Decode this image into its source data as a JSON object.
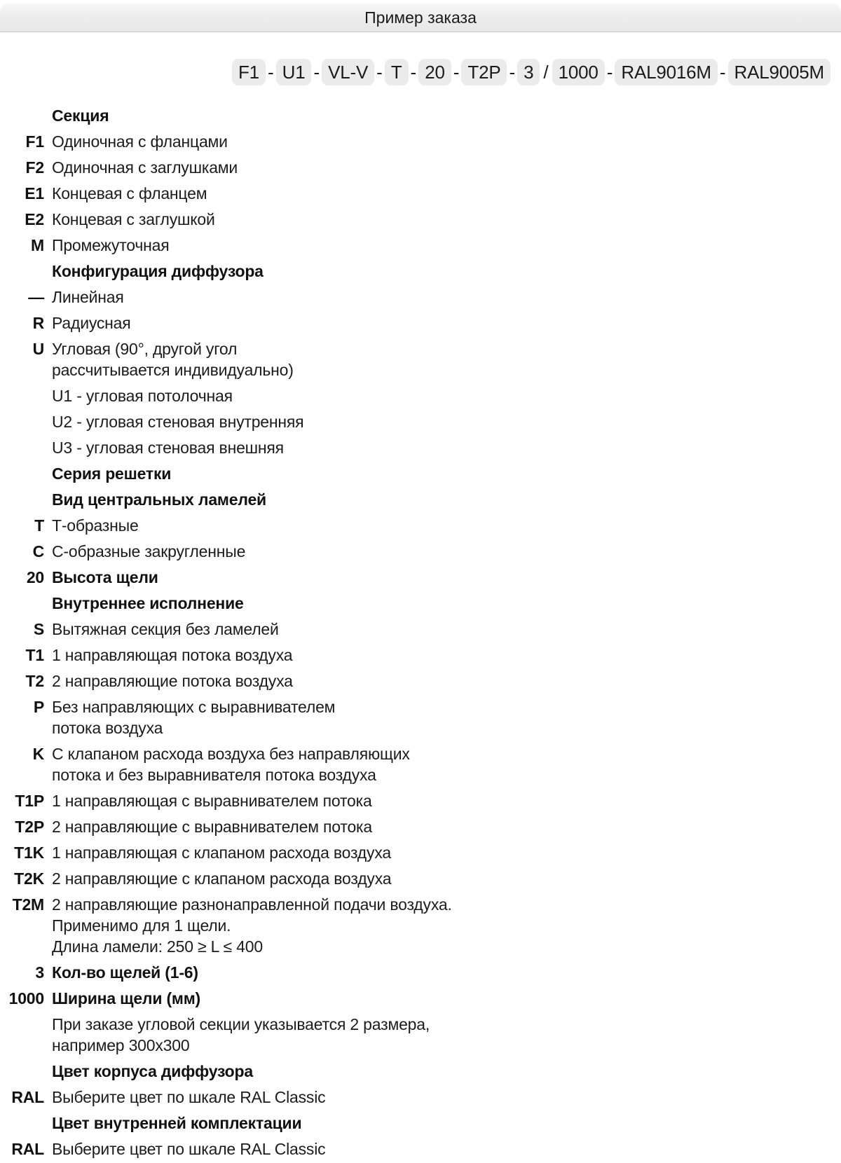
{
  "header": {
    "title": "Пример заказа"
  },
  "code": {
    "segments": [
      "F1",
      "U1",
      "VL-V",
      "T",
      "20",
      "T2P",
      "3",
      "1000",
      "RAL9016M",
      "RAL9005M"
    ],
    "separators": [
      "-",
      "-",
      "-",
      "-",
      "-",
      "-",
      "/",
      "-",
      "-"
    ]
  },
  "colors": {
    "chip_background": "#ebebeb",
    "connector_line": "#d6d6d6",
    "header_bar": "#ececec",
    "text": "#1c1c1c"
  },
  "rows": [
    {
      "k": "",
      "t": "Секция"
    },
    {
      "k": "F1",
      "t": "Одиночная с фланцами"
    },
    {
      "k": "F2",
      "t": "Одиночная с заглушками"
    },
    {
      "k": "E1",
      "t": "Концевая с фланцем"
    },
    {
      "k": "E2",
      "t": "Концевая с заглушкой"
    },
    {
      "k": "M",
      "t": "Промежуточная"
    },
    {
      "k": "",
      "t": "Конфигурация диффузора"
    },
    {
      "k": "—",
      "t": "Линейная"
    },
    {
      "k": "R",
      "t": "Радиусная"
    },
    {
      "k": "U",
      "t": "Угловая (90°, другой угол"
    },
    {
      "k": "",
      "t": "рассчитывается индивидуально)"
    },
    {
      "k": "",
      "t": "U1 - угловая потолочная"
    },
    {
      "k": "",
      "t": "U2 - угловая стеновая внутренняя"
    },
    {
      "k": "",
      "t": "U3 - угловая стеновая внешняя"
    },
    {
      "k": "",
      "t": "Серия решетки"
    },
    {
      "k": "",
      "t": "Вид центральных ламелей"
    },
    {
      "k": "T",
      "t": "Т-образные"
    },
    {
      "k": "C",
      "t": "С-образные закругленные"
    },
    {
      "k": "20",
      "t": "Высота щели"
    },
    {
      "k": "",
      "t": "Внутреннее исполнение"
    },
    {
      "k": "S",
      "t": "Вытяжная секция без ламелей"
    },
    {
      "k": "T1",
      "t": "1 направляющая потока воздуха"
    },
    {
      "k": "T2",
      "t": "2 направляющие потока воздуха"
    },
    {
      "k": "P",
      "t": "Без направляющих с выравнивателем"
    },
    {
      "k": "",
      "t": "потока воздуха"
    },
    {
      "k": "K",
      "t": "С клапаном расхода воздуха без направляющих"
    },
    {
      "k": "",
      "t": "потока и без выравнивателя потока воздуха"
    },
    {
      "k": "T1P",
      "t": "1 направляющая с выравнивателем потока"
    },
    {
      "k": "T2P",
      "t": "2 направляющие с выравнивателем потока"
    },
    {
      "k": "T1K",
      "t": "1 направляющая с клапаном расхода воздуха"
    },
    {
      "k": "T2K",
      "t": "2 направляющие с клапаном расхода воздуха"
    },
    {
      "k": "T2M",
      "t": "2 направляющие разнонаправленной подачи воздуха."
    },
    {
      "k": "",
      "t": "Применимо для 1 щели."
    },
    {
      "k": "",
      "t": "Длина ламели: 250 ≥ L ≤ 400"
    },
    {
      "k": "3",
      "t": "Кол-во щелей (1-6)"
    },
    {
      "k": "1000",
      "t": "Ширина щели (мм)"
    },
    {
      "k": "",
      "t": "При заказе угловой секции указывается 2 размера,"
    },
    {
      "k": "",
      "t": "например 300x300"
    },
    {
      "k": "",
      "t": "Цвет корпуса диффузора"
    },
    {
      "k": "RAL",
      "t": "Выберите цвет по шкале RAL Classic"
    },
    {
      "k": "",
      "t": "Цвет внутренней комплектации"
    },
    {
      "k": "RAL",
      "t": "Выберите цвет по шкале RAL Classic"
    }
  ]
}
